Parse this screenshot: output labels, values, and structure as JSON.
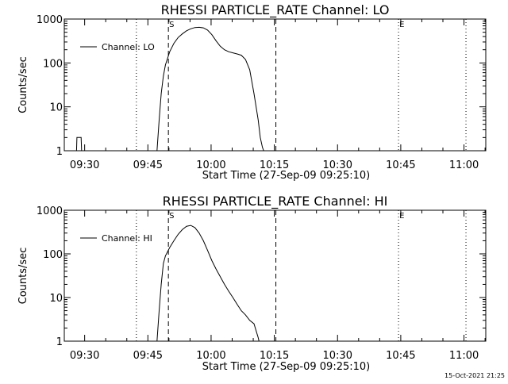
{
  "colors": {
    "background": "#ffffff",
    "foreground": "#000000"
  },
  "chart_data": [
    {
      "type": "line",
      "title": "RHESSI PARTICLE_RATE Channel: LO",
      "xlabel": "Start Time (27-Sep-09 09:25:10)",
      "ylabel": "Counts/sec",
      "x_unit": "minutes after 09:25:10",
      "xlim": [
        0,
        100
      ],
      "ylim": [
        1,
        1000
      ],
      "y_scale": "log",
      "grid": false,
      "legend_position": "top-left",
      "x_ticks": [
        "09:30",
        "09:45",
        "10:00",
        "10:15",
        "10:30",
        "10:45",
        "11:00"
      ],
      "x_tick_values": [
        4.83,
        19.83,
        34.83,
        49.83,
        64.83,
        79.83,
        94.83
      ],
      "y_ticks": [
        "1",
        "10",
        "100",
        "1000"
      ],
      "y_tick_values": [
        1,
        10,
        100,
        1000
      ],
      "series": [
        {
          "name": "Channel: LO",
          "segments": [
            {
              "x": [
                2.9,
                3.0,
                3.6,
                4.0,
                4.1
              ],
              "y": [
                1,
                2,
                2,
                2,
                1
              ]
            },
            {
              "x": [
                22.0,
                22.5,
                23.0,
                23.5,
                24.0,
                25.0,
                26.0,
                27.0,
                28.0,
                29.0,
                30.0,
                31.0,
                32.0,
                33.0,
                34.0,
                35.0,
                36.0,
                37.0,
                38.0,
                39.0,
                40.0,
                41.0,
                42.0,
                43.0,
                44.0,
                45.0,
                46.0,
                46.5,
                47.0,
                47.3
              ],
              "y": [
                1,
                5,
                20,
                50,
                90,
                180,
                280,
                380,
                460,
                540,
                600,
                640,
                650,
                630,
                560,
                440,
                320,
                240,
                200,
                180,
                170,
                160,
                150,
                120,
                70,
                20,
                5,
                2,
                1.2,
                1
              ]
            }
          ]
        }
      ],
      "annotations": [
        {
          "label": "S",
          "x": 24.7,
          "style": "dashed"
        },
        {
          "label": "",
          "x": 50.2,
          "style": "dashed"
        },
        {
          "label": "",
          "x": 17.1,
          "style": "dotted"
        },
        {
          "label": "E",
          "x": 79.3,
          "style": "dotted"
        },
        {
          "label": "",
          "x": 95.3,
          "style": "dotted"
        }
      ]
    },
    {
      "type": "line",
      "title": "RHESSI PARTICLE_RATE Channel: HI",
      "xlabel": "Start Time (27-Sep-09 09:25:10)",
      "ylabel": "Counts/sec",
      "x_unit": "minutes after 09:25:10",
      "xlim": [
        0,
        100
      ],
      "ylim": [
        1,
        1000
      ],
      "y_scale": "log",
      "grid": false,
      "legend_position": "top-left",
      "x_ticks": [
        "09:30",
        "09:45",
        "10:00",
        "10:15",
        "10:30",
        "10:45",
        "11:00"
      ],
      "x_tick_values": [
        4.83,
        19.83,
        34.83,
        49.83,
        64.83,
        79.83,
        94.83
      ],
      "y_ticks": [
        "1",
        "10",
        "100",
        "1000"
      ],
      "y_tick_values": [
        1,
        10,
        100,
        1000
      ],
      "series": [
        {
          "name": "Channel: HI",
          "segments": [
            {
              "x": [
                22.0,
                22.5,
                23.0,
                23.5,
                24.0,
                25.0,
                26.0,
                27.0,
                28.0,
                29.0,
                30.0,
                31.0,
                32.0,
                33.0,
                34.0,
                35.0,
                36.0,
                37.0,
                38.0,
                39.0,
                40.0,
                41.0,
                42.0,
                43.0,
                44.0,
                45.0,
                46.0,
                46.2
              ],
              "y": [
                1,
                5,
                20,
                60,
                90,
                140,
                200,
                280,
                360,
                430,
                450,
                400,
                300,
                200,
                120,
                70,
                45,
                30,
                20,
                14,
                10,
                7,
                5,
                4,
                3,
                2.5,
                1.2,
                1
              ]
            }
          ]
        }
      ],
      "annotations": [
        {
          "label": "S",
          "x": 24.7,
          "style": "dashed"
        },
        {
          "label": "",
          "x": 50.2,
          "style": "dashed"
        },
        {
          "label": "",
          "x": 17.1,
          "style": "dotted"
        },
        {
          "label": "E",
          "x": 79.3,
          "style": "dotted"
        },
        {
          "label": "",
          "x": 95.3,
          "style": "dotted"
        }
      ]
    }
  ],
  "footer": {
    "timestamp": "15-Oct-2021 21:25"
  }
}
